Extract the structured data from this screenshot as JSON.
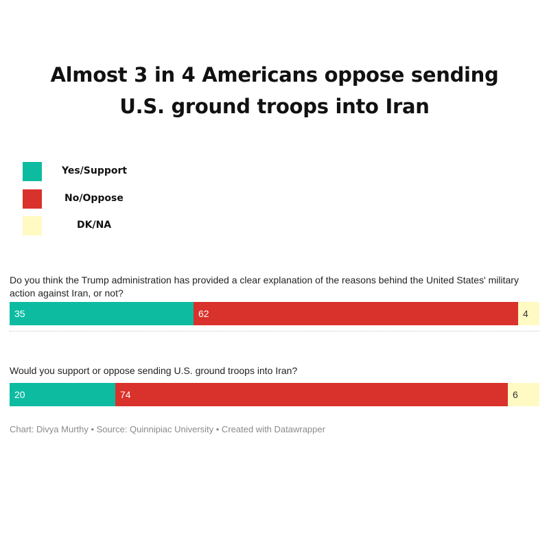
{
  "title": {
    "line1": "Almost 3 in 4 Americans oppose sending",
    "line2": "U.S. ground troops into Iran"
  },
  "legend": [
    {
      "label": "Yes/Support",
      "color": "#0dbba1"
    },
    {
      "label": "No/Oppose",
      "color": "#d9312b"
    },
    {
      "label": "DK/NA",
      "color": "#fffac3"
    }
  ],
  "footer": "Chart: Divya Murthy • Source: Quinnipiac University • Created with Datawrapper",
  "chart_data": {
    "type": "bar",
    "orientation": "horizontal",
    "stacked": true,
    "series": [
      {
        "name": "Yes/Support",
        "color": "#0dbba1"
      },
      {
        "name": "No/Oppose",
        "color": "#d9312b"
      },
      {
        "name": "DK/NA",
        "color": "#fffac3"
      }
    ],
    "rows": [
      {
        "question": "Do you think the Trump administration has provided a clear explanation of the reasons behind the United States' military action against Iran, or not?",
        "values": [
          35,
          62,
          4
        ]
      },
      {
        "question": "Would you support or oppose sending U.S. ground troops into Iran?",
        "values": [
          20,
          74,
          6
        ]
      }
    ],
    "label_colors": [
      "#ffffff",
      "#ffffff",
      "#333333"
    ],
    "title": "Almost 3 in 4 Americans oppose sending U.S. ground troops into Iran"
  }
}
